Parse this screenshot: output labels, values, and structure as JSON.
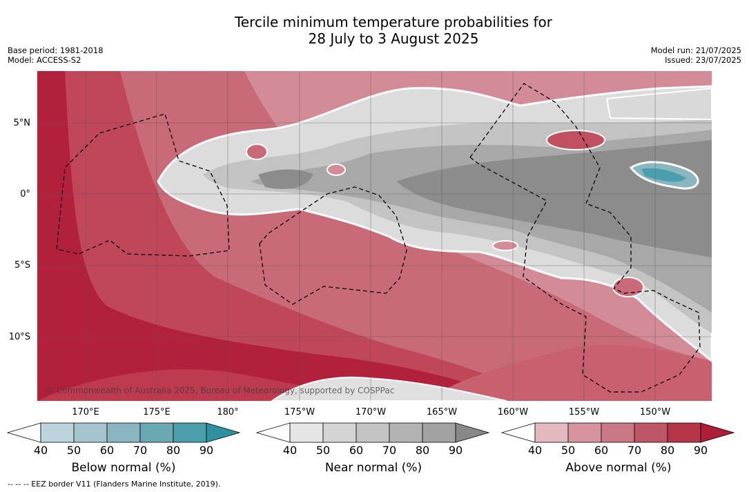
{
  "title_line1": "Tercile minimum temperature probabilities for",
  "title_line2": "28 July to 3 August 2025",
  "meta_left": {
    "base_period": "Base period: 1981-2018",
    "model": "Model: ACCESS-S2"
  },
  "meta_right": {
    "model_run": "Model run: 21/07/2025",
    "issued": "Issued: 23/07/2025"
  },
  "lat_labels": [
    "5°N",
    "0°",
    "5°S",
    "10°S"
  ],
  "lon_labels": [
    "170°E",
    "175°E",
    "180°",
    "175°W",
    "170°W",
    "165°W",
    "160°W",
    "155°W",
    "150°W"
  ],
  "copyright": "© Commonwealth of Australia 2025, Bureau of Meteorology, supported by COSPPac",
  "colorbars": [
    {
      "name": "Below normal (%)",
      "ticks": [
        "40",
        "50",
        "60",
        "70",
        "80",
        "90"
      ],
      "colors": [
        "#ffffff",
        "#bcd4dc",
        "#a4c5cd",
        "#8ab6c0",
        "#6aa8b4",
        "#4b9eac",
        "#2f91a0"
      ]
    },
    {
      "name": "Near normal (%)",
      "ticks": [
        "40",
        "50",
        "60",
        "70",
        "80",
        "90"
      ],
      "colors": [
        "#ffffff",
        "#e5e5e5",
        "#d4d4d4",
        "#c4c4c4",
        "#b3b3b3",
        "#a2a2a2",
        "#888888"
      ]
    },
    {
      "name": "Above normal (%)",
      "ticks": [
        "40",
        "50",
        "60",
        "70",
        "80",
        "90"
      ],
      "colors": [
        "#ffffff",
        "#e3b9bf",
        "#d6959e",
        "#ca7884",
        "#bf5668",
        "#b73549",
        "#ad1e39"
      ]
    }
  ],
  "footnote": "--  --  -- EEZ border V11 (Flanders Marine Institute, 2019)."
}
